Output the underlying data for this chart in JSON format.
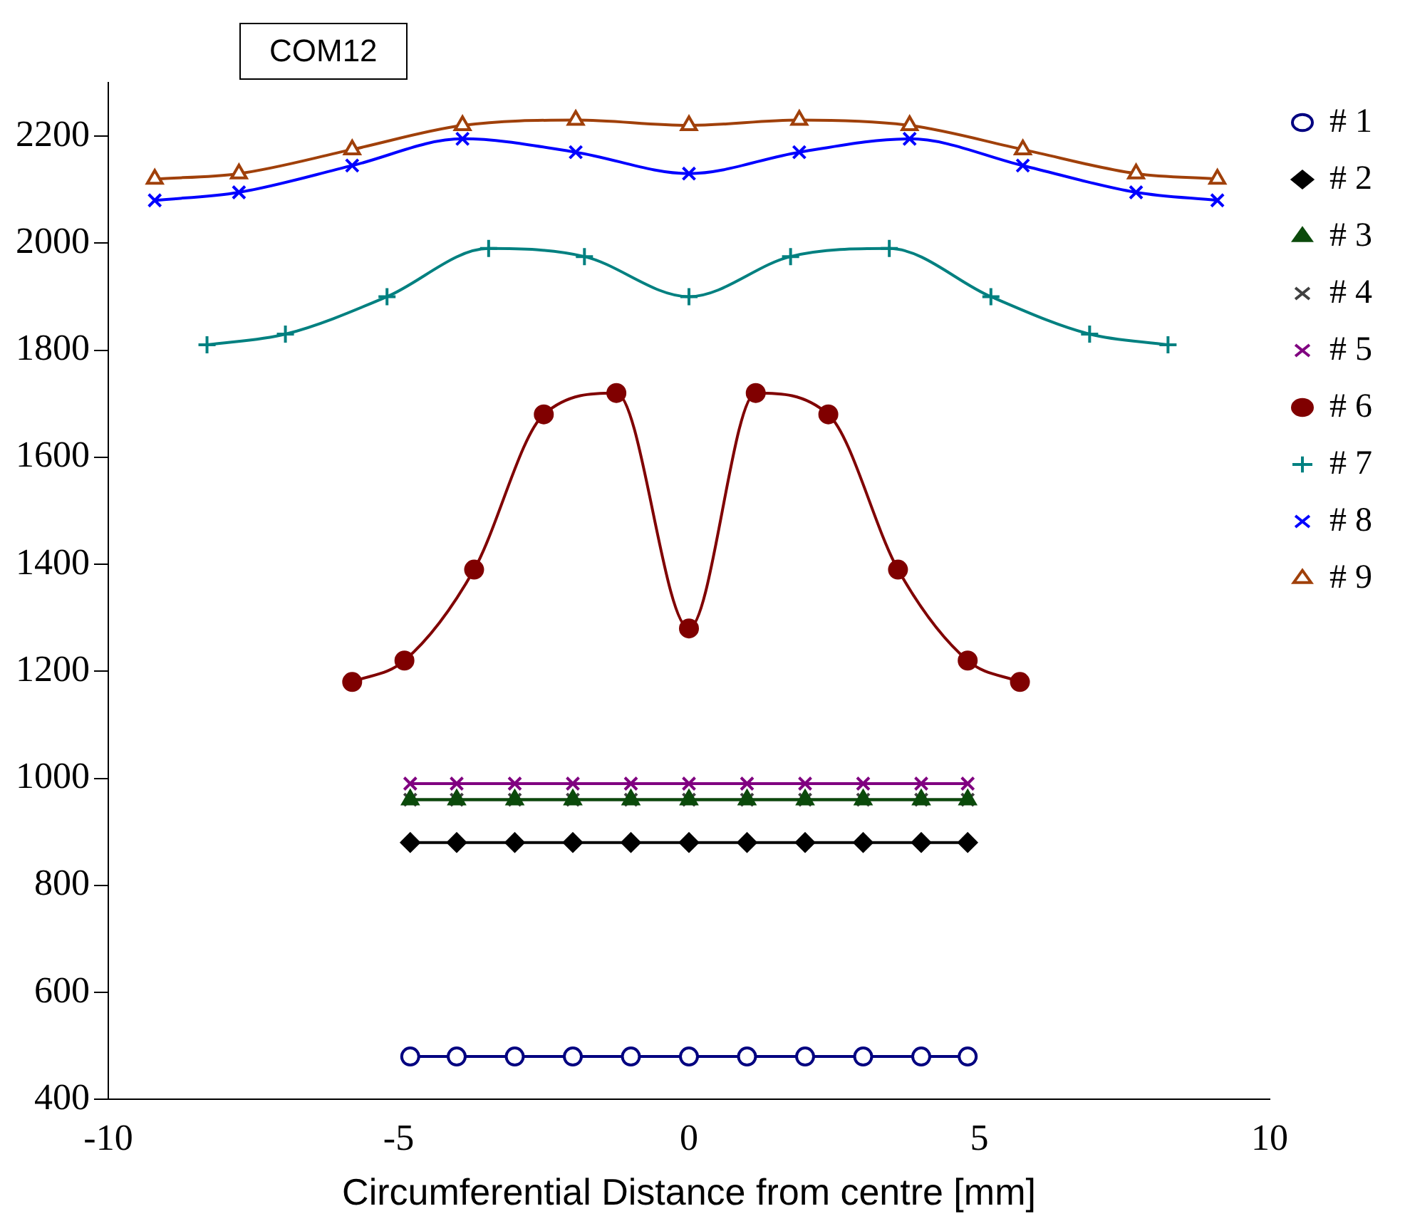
{
  "chart_data": {
    "type": "line",
    "title": "COM12",
    "xlabel": "Circumferential Distance from centre [mm]",
    "xlim": [
      -10,
      10
    ],
    "xticks": [
      -10,
      -5,
      0,
      5,
      10
    ],
    "ylim": [
      400,
      2300
    ],
    "yticks": [
      400,
      600,
      800,
      1000,
      1200,
      1400,
      1600,
      1800,
      2000,
      2200
    ],
    "legend": "right",
    "grid": false,
    "series": [
      {
        "name": "# 1",
        "color": "#000080",
        "marker": "circle-open",
        "x": [
          -4.8,
          -4,
          -3,
          -2,
          -1,
          0,
          1,
          2,
          3,
          4,
          4.8
        ],
        "values": [
          480,
          480,
          480,
          480,
          480,
          480,
          480,
          480,
          480,
          480,
          480
        ]
      },
      {
        "name": "# 2",
        "color": "#000000",
        "marker": "diamond",
        "x": [
          -4.8,
          -4,
          -3,
          -2,
          -1,
          0,
          1,
          2,
          3,
          4,
          4.8
        ],
        "values": [
          880,
          880,
          880,
          880,
          880,
          880,
          880,
          880,
          880,
          880,
          880
        ]
      },
      {
        "name": "# 3",
        "color": "#0b4a0b",
        "marker": "triangle",
        "x": [
          -4.8,
          -4,
          -3,
          -2,
          -1,
          0,
          1,
          2,
          3,
          4,
          4.8
        ],
        "values": [
          960,
          960,
          960,
          960,
          960,
          960,
          960,
          960,
          960,
          960,
          960
        ]
      },
      {
        "name": "# 4",
        "color": "#404040",
        "marker": "cross",
        "x": [
          -4.8,
          -4,
          -3,
          -2,
          -1,
          0,
          1,
          2,
          3,
          4,
          4.8
        ],
        "values": [
          960,
          960,
          960,
          960,
          960,
          960,
          960,
          960,
          960,
          960,
          960
        ]
      },
      {
        "name": "# 5",
        "color": "#800080",
        "marker": "cross",
        "x": [
          -4.8,
          -4,
          -3,
          -2,
          -1,
          0,
          1,
          2,
          3,
          4,
          4.8
        ],
        "values": [
          990,
          990,
          990,
          990,
          990,
          990,
          990,
          990,
          990,
          990,
          990
        ]
      },
      {
        "name": "# 6",
        "color": "#800000",
        "marker": "circle",
        "x": [
          -5.8,
          -4.9,
          -3.7,
          -2.5,
          -1.25,
          0,
          1.15,
          2.4,
          3.6,
          4.8,
          5.7
        ],
        "values": [
          1180,
          1220,
          1390,
          1680,
          1720,
          1280,
          1720,
          1680,
          1390,
          1220,
          1180
        ]
      },
      {
        "name": "# 7",
        "color": "#008080",
        "marker": "plus",
        "x": [
          -8.3,
          -6.95,
          -5.2,
          -3.45,
          -1.8,
          0,
          1.75,
          3.45,
          5.2,
          6.9,
          8.25
        ],
        "values": [
          1810,
          1830,
          1900,
          1990,
          1975,
          1900,
          1975,
          1990,
          1900,
          1830,
          1810
        ]
      },
      {
        "name": "# 8",
        "color": "#0000ff",
        "marker": "cross",
        "x": [
          -9.2,
          -7.75,
          -5.8,
          -3.9,
          -1.95,
          0,
          1.9,
          3.8,
          5.75,
          7.7,
          9.1
        ],
        "values": [
          2080,
          2095,
          2145,
          2195,
          2170,
          2130,
          2170,
          2195,
          2145,
          2095,
          2080
        ]
      },
      {
        "name": "# 9",
        "color": "#a0400a",
        "marker": "triangle-open",
        "x": [
          -9.2,
          -7.75,
          -5.8,
          -3.9,
          -1.95,
          0,
          1.9,
          3.8,
          5.75,
          7.7,
          9.1
        ],
        "values": [
          2120,
          2130,
          2175,
          2220,
          2230,
          2220,
          2230,
          2220,
          2175,
          2130,
          2120
        ]
      }
    ]
  }
}
